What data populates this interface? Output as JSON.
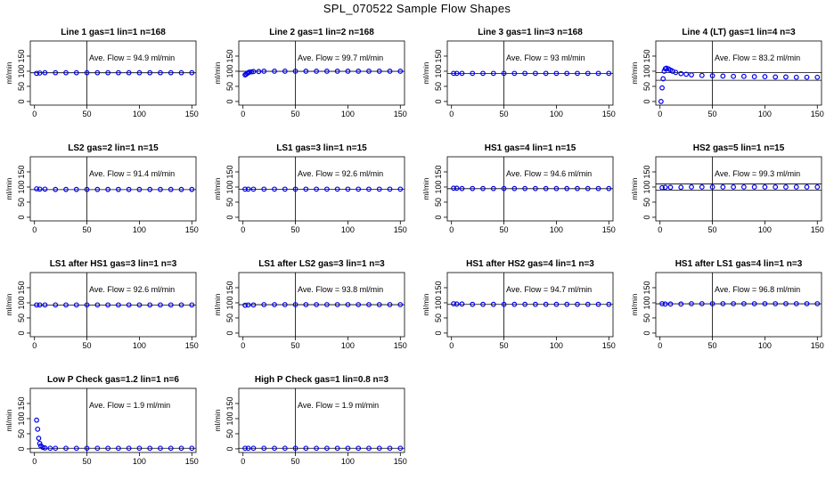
{
  "title": "SPL_070522  Sample Flow Shapes",
  "chart_data": [
    {
      "type": "scatter",
      "title": "Line 1 gas=1 lin=1 n=168",
      "annotation": "Ave. Flow =  94.9  ml/min",
      "ylabel": "ml/min",
      "xlim": [
        -4,
        154
      ],
      "ylim": [
        -12,
        200
      ],
      "xticks": [
        0,
        50,
        100,
        150
      ],
      "yticks": [
        0,
        50,
        100,
        150
      ],
      "vline": 50,
      "hlines": [
        94.9
      ],
      "x": [
        2,
        5,
        10,
        20,
        30,
        40,
        50,
        60,
        70,
        80,
        90,
        100,
        110,
        120,
        130,
        140,
        150
      ],
      "y": [
        93,
        94,
        95,
        95,
        95,
        95,
        95,
        95,
        95,
        95,
        95,
        95,
        95,
        95,
        95,
        95,
        95
      ]
    },
    {
      "type": "scatter",
      "title": "Line 2 gas=1 lin=2 n=168",
      "annotation": "Ave. Flow =  99.7  ml/min",
      "ylabel": "ml/min",
      "xlim": [
        -4,
        154
      ],
      "ylim": [
        -12,
        200
      ],
      "xticks": [
        0,
        50,
        100,
        150
      ],
      "yticks": [
        0,
        50,
        100,
        150
      ],
      "vline": 50,
      "hlines": [
        99.7
      ],
      "x": [
        2,
        3,
        4,
        5,
        6,
        8,
        10,
        15,
        20,
        30,
        40,
        50,
        60,
        70,
        80,
        90,
        100,
        110,
        120,
        130,
        140,
        150
      ],
      "y": [
        88,
        90,
        93,
        95,
        97,
        98,
        99,
        99,
        100,
        100,
        100,
        100,
        100,
        100,
        100,
        100,
        100,
        100,
        100,
        100,
        100,
        100
      ]
    },
    {
      "type": "scatter",
      "title": "Line 3 gas=1 lin=3 n=168",
      "annotation": "Ave. Flow =  93  ml/min",
      "ylabel": "ml/min",
      "xlim": [
        -4,
        154
      ],
      "ylim": [
        -12,
        200
      ],
      "xticks": [
        0,
        50,
        100,
        150
      ],
      "yticks": [
        0,
        50,
        100,
        150
      ],
      "vline": 50,
      "hlines": [
        93
      ],
      "x": [
        2,
        5,
        10,
        20,
        30,
        40,
        50,
        60,
        70,
        80,
        90,
        100,
        110,
        120,
        130,
        140,
        150
      ],
      "y": [
        93,
        93,
        93,
        93,
        93,
        93,
        93,
        93,
        93,
        93,
        93,
        93,
        93,
        93,
        93,
        93,
        93
      ]
    },
    {
      "type": "scatter",
      "title": "Line 4 (LT) gas=1 lin=4 n=3",
      "annotation": "Ave. Flow =  83.2  ml/min",
      "ylabel": "ml/min",
      "xlim": [
        -4,
        154
      ],
      "ylim": [
        -12,
        200
      ],
      "xticks": [
        0,
        50,
        100,
        150
      ],
      "yticks": [
        0,
        50,
        100,
        150
      ],
      "vline": 50,
      "hlines": [
        70,
        95
      ],
      "x": [
        1,
        2,
        3,
        4,
        5,
        6,
        8,
        10,
        12,
        15,
        20,
        25,
        30,
        40,
        50,
        60,
        70,
        80,
        90,
        100,
        110,
        120,
        130,
        140,
        150
      ],
      "y": [
        0,
        45,
        75,
        100,
        108,
        110,
        108,
        104,
        100,
        96,
        92,
        90,
        88,
        86,
        85,
        84,
        83,
        83,
        82,
        82,
        81,
        81,
        80,
        80,
        80
      ]
    },
    {
      "type": "scatter",
      "title": "LS2 gas=2 lin=1 n=15",
      "annotation": "Ave. Flow =  91.4  ml/min",
      "ylabel": "ml/min",
      "xlim": [
        -4,
        154
      ],
      "ylim": [
        -12,
        200
      ],
      "xticks": [
        0,
        50,
        100,
        150
      ],
      "yticks": [
        0,
        50,
        100,
        150
      ],
      "vline": 50,
      "hlines": [
        91.4
      ],
      "x": [
        2,
        5,
        10,
        20,
        30,
        40,
        50,
        60,
        70,
        80,
        90,
        100,
        110,
        120,
        130,
        140,
        150
      ],
      "y": [
        94,
        93,
        93,
        92,
        92,
        92,
        92,
        92,
        92,
        92,
        92,
        92,
        92,
        92,
        92,
        92,
        92
      ]
    },
    {
      "type": "scatter",
      "title": "LS1 gas=3 lin=1 n=15",
      "annotation": "Ave. Flow =  92.6  ml/min",
      "ylabel": "ml/min",
      "xlim": [
        -4,
        154
      ],
      "ylim": [
        -12,
        200
      ],
      "xticks": [
        0,
        50,
        100,
        150
      ],
      "yticks": [
        0,
        50,
        100,
        150
      ],
      "vline": 50,
      "hlines": [
        92.6
      ],
      "x": [
        2,
        5,
        10,
        20,
        30,
        40,
        50,
        60,
        70,
        80,
        90,
        100,
        110,
        120,
        130,
        140,
        150
      ],
      "y": [
        93,
        93,
        93,
        93,
        93,
        93,
        93,
        93,
        93,
        93,
        93,
        93,
        93,
        93,
        93,
        93,
        93
      ]
    },
    {
      "type": "scatter",
      "title": "HS1 gas=4 lin=1 n=15",
      "annotation": "Ave. Flow =  94.6  ml/min",
      "ylabel": "ml/min",
      "xlim": [
        -4,
        154
      ],
      "ylim": [
        -12,
        200
      ],
      "xticks": [
        0,
        50,
        100,
        150
      ],
      "yticks": [
        0,
        50,
        100,
        150
      ],
      "vline": 50,
      "hlines": [
        94.6
      ],
      "x": [
        2,
        5,
        10,
        20,
        30,
        40,
        50,
        60,
        70,
        80,
        90,
        100,
        110,
        120,
        130,
        140,
        150
      ],
      "y": [
        96,
        96,
        95,
        95,
        95,
        95,
        95,
        95,
        95,
        95,
        95,
        95,
        95,
        95,
        95,
        95,
        95
      ]
    },
    {
      "type": "scatter",
      "title": "HS2 gas=5 lin=1 n=15",
      "annotation": "Ave. Flow =  99.3  ml/min",
      "ylabel": "ml/min",
      "xlim": [
        -4,
        154
      ],
      "ylim": [
        -12,
        200
      ],
      "xticks": [
        0,
        50,
        100,
        150
      ],
      "yticks": [
        0,
        50,
        100,
        150
      ],
      "vline": 50,
      "hlines": [
        90,
        110
      ],
      "x": [
        2,
        5,
        10,
        20,
        30,
        40,
        50,
        60,
        70,
        80,
        90,
        100,
        110,
        120,
        130,
        140,
        150
      ],
      "y": [
        98,
        99,
        99,
        99,
        100,
        100,
        100,
        100,
        100,
        100,
        100,
        100,
        100,
        100,
        100,
        100,
        100
      ]
    },
    {
      "type": "scatter",
      "title": "LS1 after HS1 gas=3 lin=1 n=3",
      "annotation": "Ave. Flow =  92.6  ml/min",
      "ylabel": "ml/min",
      "xlim": [
        -4,
        154
      ],
      "ylim": [
        -12,
        200
      ],
      "xticks": [
        0,
        50,
        100,
        150
      ],
      "yticks": [
        0,
        50,
        100,
        150
      ],
      "vline": 50,
      "hlines": [
        92.6
      ],
      "x": [
        2,
        5,
        10,
        20,
        30,
        40,
        50,
        60,
        70,
        80,
        90,
        100,
        110,
        120,
        130,
        140,
        150
      ],
      "y": [
        93,
        93,
        93,
        93,
        93,
        93,
        93,
        93,
        93,
        93,
        93,
        93,
        93,
        93,
        93,
        93,
        93
      ]
    },
    {
      "type": "scatter",
      "title": "LS1 after LS2 gas=3 lin=1 n=3",
      "annotation": "Ave. Flow =  93.8  ml/min",
      "ylabel": "ml/min",
      "xlim": [
        -4,
        154
      ],
      "ylim": [
        -12,
        200
      ],
      "xticks": [
        0,
        50,
        100,
        150
      ],
      "yticks": [
        0,
        50,
        100,
        150
      ],
      "vline": 50,
      "hlines": [
        93.8
      ],
      "x": [
        2,
        5,
        10,
        20,
        30,
        40,
        50,
        60,
        70,
        80,
        90,
        100,
        110,
        120,
        130,
        140,
        150
      ],
      "y": [
        92,
        93,
        93,
        94,
        94,
        94,
        94,
        94,
        94,
        94,
        94,
        94,
        94,
        94,
        94,
        94,
        94
      ]
    },
    {
      "type": "scatter",
      "title": "HS1 after HS2 gas=4 lin=1 n=3",
      "annotation": "Ave. Flow =  94.7  ml/min",
      "ylabel": "ml/min",
      "xlim": [
        -4,
        154
      ],
      "ylim": [
        -12,
        200
      ],
      "xticks": [
        0,
        50,
        100,
        150
      ],
      "yticks": [
        0,
        50,
        100,
        150
      ],
      "vline": 50,
      "hlines": [
        94.7
      ],
      "x": [
        2,
        5,
        10,
        20,
        30,
        40,
        50,
        60,
        70,
        80,
        90,
        100,
        110,
        120,
        130,
        140,
        150
      ],
      "y": [
        97,
        96,
        96,
        95,
        95,
        95,
        95,
        95,
        95,
        95,
        95,
        95,
        95,
        95,
        95,
        95,
        95
      ]
    },
    {
      "type": "scatter",
      "title": "HS1 after LS1 gas=4 lin=1 n=3",
      "annotation": "Ave. Flow =  96.8  ml/min",
      "ylabel": "ml/min",
      "xlim": [
        -4,
        154
      ],
      "ylim": [
        -12,
        200
      ],
      "xticks": [
        0,
        50,
        100,
        150
      ],
      "yticks": [
        0,
        50,
        100,
        150
      ],
      "vline": 50,
      "hlines": [
        96.8
      ],
      "x": [
        2,
        5,
        10,
        20,
        30,
        40,
        50,
        60,
        70,
        80,
        90,
        100,
        110,
        120,
        130,
        140,
        150
      ],
      "y": [
        97,
        96,
        96,
        96,
        97,
        97,
        97,
        97,
        97,
        97,
        97,
        97,
        97,
        97,
        97,
        97,
        97
      ]
    },
    {
      "type": "scatter",
      "title": "Low P Check gas=1.2 lin=1 n=6",
      "annotation": "Ave. Flow =  1.9  ml/min",
      "ylabel": "ml/min",
      "xlim": [
        -4,
        154
      ],
      "ylim": [
        -12,
        200
      ],
      "xticks": [
        0,
        50,
        100,
        150
      ],
      "yticks": [
        0,
        50,
        100,
        150
      ],
      "vline": 50,
      "hlines": [
        1.9
      ],
      "x": [
        2,
        3,
        4,
        5,
        6,
        8,
        10,
        15,
        20,
        30,
        40,
        50,
        60,
        70,
        80,
        90,
        100,
        110,
        120,
        130,
        140,
        150
      ],
      "y": [
        95,
        65,
        35,
        18,
        10,
        5,
        3,
        2,
        2,
        2,
        2,
        2,
        2,
        2,
        2,
        2,
        2,
        2,
        2,
        2,
        2,
        2
      ]
    },
    {
      "type": "scatter",
      "title": "High P Check gas=1 lin=0.8 n=3",
      "annotation": "Ave. Flow =  1.9  ml/min",
      "ylabel": "ml/min",
      "xlim": [
        -4,
        154
      ],
      "ylim": [
        -12,
        200
      ],
      "xticks": [
        0,
        50,
        100,
        150
      ],
      "yticks": [
        0,
        50,
        100,
        150
      ],
      "vline": 50,
      "hlines": [
        1.9
      ],
      "x": [
        2,
        5,
        10,
        20,
        30,
        40,
        50,
        60,
        70,
        80,
        90,
        100,
        110,
        120,
        130,
        140,
        150
      ],
      "y": [
        2,
        2,
        2,
        2,
        2,
        2,
        2,
        2,
        2,
        2,
        2,
        2,
        2,
        2,
        2,
        2,
        2
      ]
    }
  ],
  "colors": {
    "points": "#0000ee",
    "axes": "#000000"
  }
}
